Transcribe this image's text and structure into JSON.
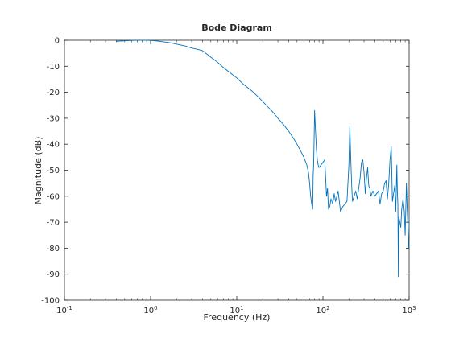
{
  "chart_data": {
    "type": "line",
    "title": "Bode Diagram",
    "xlabel": "Frequency  (Hz)",
    "ylabel": "Magnitude (dB)",
    "xscale": "log",
    "xlim": [
      0.1,
      1000
    ],
    "ylim": [
      -100,
      0
    ],
    "x_ticks": [
      {
        "value": 0.1,
        "base": "10",
        "exp": "-1"
      },
      {
        "value": 1,
        "base": "10",
        "exp": "0"
      },
      {
        "value": 10,
        "base": "10",
        "exp": "1"
      },
      {
        "value": 100,
        "base": "10",
        "exp": "2"
      },
      {
        "value": 1000,
        "base": "10",
        "exp": "3"
      }
    ],
    "y_ticks": [
      0,
      -10,
      -20,
      -30,
      -40,
      -50,
      -60,
      -70,
      -80,
      -90,
      -100
    ],
    "grid": false,
    "line_color": "#0072bd",
    "series": [
      {
        "x": [
          0.4,
          0.5,
          0.6,
          0.7,
          0.8,
          0.9,
          1.0,
          1.2,
          1.4,
          1.7,
          2.0,
          2.5,
          3.0,
          3.5,
          4.0,
          5.0,
          6.0,
          7.0,
          8.0,
          10,
          12,
          15,
          18,
          22,
          26,
          30,
          35,
          40,
          45,
          50,
          55,
          60,
          65,
          68,
          70,
          72,
          74,
          76,
          77,
          78,
          80,
          82,
          84,
          86,
          88,
          90,
          95,
          100,
          105,
          110,
          113,
          116,
          120,
          124,
          130,
          135,
          140,
          145,
          150,
          160,
          170,
          180,
          190,
          200,
          205,
          210,
          215,
          220,
          230,
          240,
          250,
          260,
          270,
          280,
          290,
          300,
          310,
          320,
          330,
          340,
          350,
          360,
          380,
          400,
          420,
          440,
          460,
          480,
          500,
          520,
          540,
          560,
          580,
          600,
          620,
          640,
          660,
          680,
          700,
          720,
          730,
          740,
          750,
          760,
          780,
          800,
          820,
          850,
          880,
          900,
          930,
          950,
          970,
          990,
          1000
        ],
        "y": [
          -0.4,
          -0.2,
          -0.1,
          0,
          0,
          0,
          -0.1,
          -0.3,
          -0.6,
          -1.0,
          -1.5,
          -2.2,
          -3.0,
          -3.5,
          -4.0,
          -6.5,
          -8.5,
          -10.5,
          -12.0,
          -14.5,
          -17.0,
          -19.5,
          -22.0,
          -25.0,
          -27.5,
          -30.0,
          -32.5,
          -35.0,
          -37.5,
          -40.0,
          -42.5,
          -45.0,
          -48.0,
          -51.0,
          -55.0,
          -60.0,
          -63.0,
          -65.0,
          -52.0,
          -48.0,
          -27.0,
          -35.0,
          -42.0,
          -46.0,
          -48.0,
          -49.0,
          -48.0,
          -47.0,
          -46.0,
          -60.0,
          -57.0,
          -65.0,
          -64.0,
          -61.0,
          -63.0,
          -59.0,
          -62.0,
          -60.0,
          -58.0,
          -66.0,
          -64.0,
          -63.0,
          -62.0,
          -48.0,
          -33.0,
          -45.0,
          -55.0,
          -62.0,
          -60.0,
          -58.0,
          -61.0,
          -57.0,
          -53.0,
          -47.0,
          -46.0,
          -51.0,
          -59.0,
          -53.0,
          -49.0,
          -56.0,
          -57.0,
          -60.0,
          -58.0,
          -60.0,
          -59.0,
          -58.0,
          -63.0,
          -59.0,
          -58.0,
          -55.0,
          -54.0,
          -61.0,
          -55.0,
          -46.0,
          -41.0,
          -62.0,
          -59.0,
          -56.0,
          -66.0,
          -48.0,
          -58.0,
          -63.0,
          -91.0,
          -68.0,
          -70.0,
          -72.0,
          -65.0,
          -61.0,
          -66.0,
          -75.0,
          -55.0,
          -65.0,
          -72.0,
          -80.0,
          -78.0
        ]
      }
    ]
  }
}
